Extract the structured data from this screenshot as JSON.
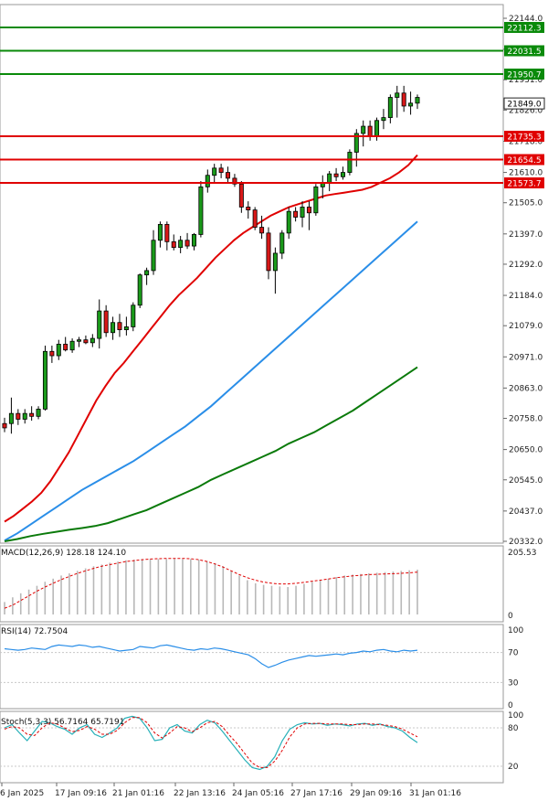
{
  "chart_data": {
    "type": "candlestick",
    "price_axis": {
      "ticks": [
        "22144.0",
        "22036.5",
        "21931.0",
        "21826.0",
        "21718.0",
        "21610.0",
        "21505.0",
        "21397.0",
        "21292.0",
        "21184.0",
        "21079.0",
        "20971.0",
        "20863.0",
        "20758.0",
        "20650.0",
        "20545.0",
        "20437.0",
        "20332.0"
      ],
      "range": [
        20332.0,
        22144.0
      ]
    },
    "time_axis": {
      "labels": [
        "6 Jan 2025",
        "17 Jan 09:16",
        "21 Jan 01:16",
        "22 Jan 13:16",
        "24 Jan 05:16",
        "27 Jan 17:16",
        "29 Jan 09:16",
        "31 Jan 01:16"
      ]
    },
    "levels": [
      {
        "value": 22112.3,
        "label": "22112.3",
        "color": "#0a8a0a"
      },
      {
        "value": 22031.5,
        "label": "22031.5",
        "color": "#0a8a0a"
      },
      {
        "value": 21950.7,
        "label": "21950.7",
        "color": "#0a8a0a"
      },
      {
        "value": 21735.3,
        "label": "21735.3",
        "color": "#e00000"
      },
      {
        "value": 21654.5,
        "label": "21654.5",
        "color": "#e00000"
      },
      {
        "value": 21573.7,
        "label": "21573.7",
        "color": "#e00000"
      }
    ],
    "current_price": {
      "value": 21849.0,
      "label": "21849.0"
    },
    "candles": [
      {
        "o": 20740,
        "h": 20760,
        "l": 20710,
        "c": 20725
      },
      {
        "o": 20740,
        "h": 20830,
        "l": 20705,
        "c": 20775
      },
      {
        "o": 20775,
        "h": 20790,
        "l": 20735,
        "c": 20755
      },
      {
        "o": 20755,
        "h": 20790,
        "l": 20740,
        "c": 20775
      },
      {
        "o": 20775,
        "h": 20800,
        "l": 20750,
        "c": 20765
      },
      {
        "o": 20765,
        "h": 20800,
        "l": 20755,
        "c": 20790
      },
      {
        "o": 20790,
        "h": 21010,
        "l": 20785,
        "c": 20990
      },
      {
        "o": 20990,
        "h": 21010,
        "l": 20950,
        "c": 20975
      },
      {
        "o": 20975,
        "h": 21030,
        "l": 20960,
        "c": 21015
      },
      {
        "o": 21015,
        "h": 21040,
        "l": 20990,
        "c": 20995
      },
      {
        "o": 20995,
        "h": 21035,
        "l": 20985,
        "c": 21025
      },
      {
        "o": 21025,
        "h": 21040,
        "l": 21005,
        "c": 21030
      },
      {
        "o": 21030,
        "h": 21045,
        "l": 21015,
        "c": 21020
      },
      {
        "o": 21020,
        "h": 21050,
        "l": 21005,
        "c": 21035
      },
      {
        "o": 21035,
        "h": 21170,
        "l": 21000,
        "c": 21130
      },
      {
        "o": 21130,
        "h": 21150,
        "l": 21040,
        "c": 21055
      },
      {
        "o": 21055,
        "h": 21110,
        "l": 21030,
        "c": 21090
      },
      {
        "o": 21090,
        "h": 21120,
        "l": 21040,
        "c": 21065
      },
      {
        "o": 21065,
        "h": 21110,
        "l": 21045,
        "c": 21075
      },
      {
        "o": 21075,
        "h": 21160,
        "l": 21060,
        "c": 21150
      },
      {
        "o": 21150,
        "h": 21260,
        "l": 21140,
        "c": 21255
      },
      {
        "o": 21255,
        "h": 21280,
        "l": 21220,
        "c": 21270
      },
      {
        "o": 21270,
        "h": 21410,
        "l": 21255,
        "c": 21375
      },
      {
        "o": 21375,
        "h": 21440,
        "l": 21350,
        "c": 21430
      },
      {
        "o": 21430,
        "h": 21440,
        "l": 21340,
        "c": 21370
      },
      {
        "o": 21370,
        "h": 21395,
        "l": 21340,
        "c": 21350
      },
      {
        "o": 21350,
        "h": 21390,
        "l": 21330,
        "c": 21375
      },
      {
        "o": 21375,
        "h": 21400,
        "l": 21345,
        "c": 21355
      },
      {
        "o": 21355,
        "h": 21400,
        "l": 21340,
        "c": 21395
      },
      {
        "o": 21395,
        "h": 21580,
        "l": 21385,
        "c": 21560
      },
      {
        "o": 21560,
        "h": 21620,
        "l": 21540,
        "c": 21600
      },
      {
        "o": 21600,
        "h": 21640,
        "l": 21575,
        "c": 21625
      },
      {
        "o": 21625,
        "h": 21640,
        "l": 21590,
        "c": 21610
      },
      {
        "o": 21610,
        "h": 21630,
        "l": 21575,
        "c": 21590
      },
      {
        "o": 21590,
        "h": 21605,
        "l": 21560,
        "c": 21570
      },
      {
        "o": 21570,
        "h": 21580,
        "l": 21470,
        "c": 21490
      },
      {
        "o": 21490,
        "h": 21510,
        "l": 21450,
        "c": 21480
      },
      {
        "o": 21480,
        "h": 21490,
        "l": 21410,
        "c": 21420
      },
      {
        "o": 21420,
        "h": 21460,
        "l": 21380,
        "c": 21400
      },
      {
        "o": 21400,
        "h": 21420,
        "l": 21240,
        "c": 21270
      },
      {
        "o": 21270,
        "h": 21350,
        "l": 21190,
        "c": 21330
      },
      {
        "o": 21330,
        "h": 21410,
        "l": 21310,
        "c": 21400
      },
      {
        "o": 21400,
        "h": 21490,
        "l": 21380,
        "c": 21475
      },
      {
        "o": 21475,
        "h": 21490,
        "l": 21440,
        "c": 21455
      },
      {
        "o": 21455,
        "h": 21510,
        "l": 21420,
        "c": 21490
      },
      {
        "o": 21490,
        "h": 21510,
        "l": 21410,
        "c": 21470
      },
      {
        "o": 21470,
        "h": 21570,
        "l": 21460,
        "c": 21560
      },
      {
        "o": 21560,
        "h": 21600,
        "l": 21520,
        "c": 21575
      },
      {
        "o": 21575,
        "h": 21615,
        "l": 21545,
        "c": 21605
      },
      {
        "o": 21605,
        "h": 21625,
        "l": 21580,
        "c": 21595
      },
      {
        "o": 21595,
        "h": 21630,
        "l": 21585,
        "c": 21610
      },
      {
        "o": 21610,
        "h": 21690,
        "l": 21600,
        "c": 21680
      },
      {
        "o": 21680,
        "h": 21760,
        "l": 21630,
        "c": 21745
      },
      {
        "o": 21745,
        "h": 21790,
        "l": 21700,
        "c": 21770
      },
      {
        "o": 21770,
        "h": 21790,
        "l": 21720,
        "c": 21735
      },
      {
        "o": 21735,
        "h": 21800,
        "l": 21720,
        "c": 21790
      },
      {
        "o": 21790,
        "h": 21830,
        "l": 21760,
        "c": 21800
      },
      {
        "o": 21800,
        "h": 21880,
        "l": 21780,
        "c": 21870
      },
      {
        "o": 21870,
        "h": 21910,
        "l": 21800,
        "c": 21885
      },
      {
        "o": 21885,
        "h": 21910,
        "l": 21820,
        "c": 21840
      },
      {
        "o": 21840,
        "h": 21890,
        "l": 21810,
        "c": 21850
      },
      {
        "o": 21850,
        "h": 21880,
        "l": 21830,
        "c": 21870
      }
    ],
    "moving_averages": [
      {
        "color": "#e00000",
        "values": [
          20400,
          20420,
          20445,
          20470,
          20500,
          20540,
          20590,
          20640,
          20700,
          20760,
          20820,
          20870,
          20915,
          20950,
          20990,
          21030,
          21070,
          21110,
          21150,
          21185,
          21215,
          21245,
          21280,
          21315,
          21345,
          21375,
          21400,
          21420,
          21440,
          21460,
          21475,
          21490,
          21500,
          21510,
          21520,
          21530,
          21535,
          21540,
          21545,
          21550,
          21560,
          21575,
          21590,
          21610,
          21635,
          21670
        ]
      },
      {
        "color": "#2a8ee8",
        "values": [
          20335,
          20360,
          20390,
          20420,
          20450,
          20480,
          20510,
          20535,
          20560,
          20585,
          20610,
          20640,
          20670,
          20700,
          20730,
          20765,
          20800,
          20840,
          20880,
          20920,
          20960,
          21000,
          21040,
          21080,
          21120,
          21160,
          21200,
          21240,
          21280,
          21320,
          21360,
          21400,
          21440
        ]
      },
      {
        "color": "#0a7a0a",
        "values": [
          20332,
          20340,
          20350,
          20358,
          20365,
          20372,
          20378,
          20385,
          20395,
          20410,
          20425,
          20440,
          20460,
          20480,
          20500,
          20520,
          20545,
          20565,
          20585,
          20605,
          20625,
          20645,
          20670,
          20690,
          20710,
          20735,
          20760,
          20785,
          20815,
          20845,
          20875,
          20905,
          20935
        ]
      }
    ],
    "indicators": {
      "macd": {
        "label": "MACD(12,26,9) 128.18 124.10",
        "scale_top": "205.53",
        "scale_bottom": "0",
        "histogram": [
          40,
          55,
          68,
          80,
          92,
          105,
          115,
          125,
          132,
          140,
          148,
          155,
          160,
          166,
          170,
          174,
          176,
          178,
          178,
          178,
          178,
          178,
          178,
          178,
          176,
          172,
          165,
          155,
          140,
          125,
          110,
          100,
          95,
          92,
          90,
          88,
          92,
          98,
          105,
          110,
          115,
          120,
          125,
          128,
          130,
          132,
          134,
          136,
          138,
          140,
          142,
          144
        ],
        "signal": [
          20,
          30,
          45,
          60,
          75,
          88,
          100,
          112,
          122,
          132,
          140,
          148,
          155,
          160,
          165,
          170,
          173,
          176,
          178,
          179,
          180,
          180,
          180,
          179,
          176,
          170,
          162,
          152,
          140,
          128,
          118,
          110,
          104,
          100,
          98,
          98,
          100,
          103,
          107,
          110,
          114,
          118,
          121,
          124,
          126,
          128,
          129,
          130,
          131,
          132,
          134,
          136
        ]
      },
      "rsi": {
        "label": "RSI(14) 72.7504",
        "ticks": [
          "100",
          "70",
          "30",
          "0"
        ],
        "values": [
          75,
          74,
          73,
          74,
          76,
          75,
          74,
          78,
          80,
          79,
          78,
          80,
          79,
          77,
          78,
          76,
          74,
          72,
          73,
          74,
          78,
          77,
          76,
          79,
          80,
          78,
          76,
          74,
          73,
          75,
          74,
          76,
          75,
          73,
          71,
          69,
          67,
          62,
          55,
          50,
          53,
          57,
          60,
          62,
          64,
          66,
          65,
          66,
          67,
          68,
          67,
          69,
          70,
          72,
          71,
          73,
          74,
          72,
          71,
          73,
          72,
          73
        ]
      },
      "stoch": {
        "label": "Stoch(5,3,3) 56.7164 65.7191",
        "ticks": [
          "100",
          "80",
          "20"
        ],
        "main": [
          80,
          85,
          72,
          60,
          75,
          90,
          88,
          82,
          78,
          70,
          80,
          85,
          70,
          65,
          72,
          80,
          95,
          98,
          95,
          80,
          60,
          62,
          80,
          85,
          75,
          72,
          85,
          92,
          88,
          75,
          60,
          45,
          30,
          18,
          15,
          20,
          35,
          60,
          78,
          85,
          88,
          86,
          87,
          84,
          86,
          85,
          83,
          86,
          87,
          84,
          86,
          82,
          80,
          75,
          65,
          57
        ],
        "signal": [
          78,
          82,
          80,
          70,
          68,
          80,
          88,
          86,
          80,
          74,
          76,
          82,
          78,
          70,
          70,
          76,
          88,
          96,
          96,
          88,
          72,
          64,
          72,
          82,
          80,
          74,
          80,
          88,
          90,
          82,
          68,
          55,
          40,
          25,
          18,
          18,
          28,
          45,
          66,
          80,
          86,
          87,
          87,
          86,
          86,
          86,
          85,
          85,
          86,
          86,
          85,
          84,
          82,
          78,
          72,
          66
        ]
      }
    }
  }
}
